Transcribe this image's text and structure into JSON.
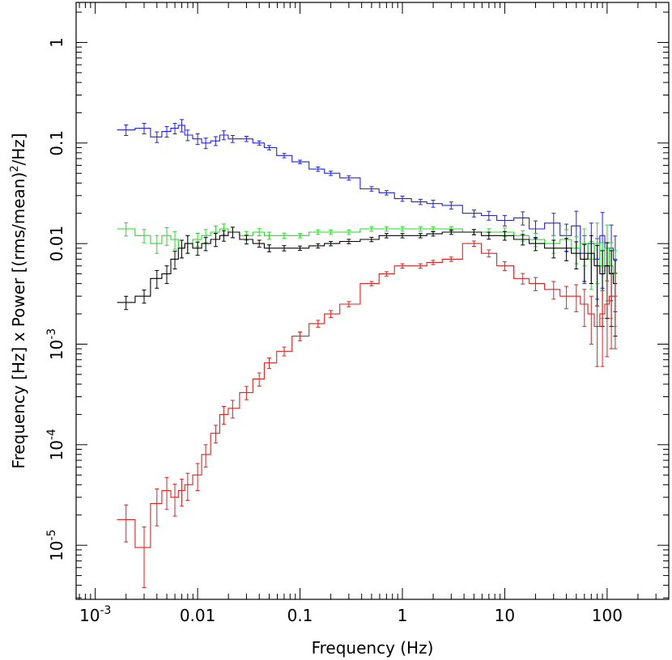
{
  "chart_data": {
    "type": "line",
    "style": "step with error bars",
    "xlabel": "Frequency (Hz)",
    "ylabel_parts": [
      "Frequency [Hz] x Power [(rms/mean)",
      "2",
      "/Hz]"
    ],
    "xscale": "log",
    "yscale": "log",
    "xlim": [
      0.00065,
      400
    ],
    "ylim": [
      2.9e-06,
      2.5
    ],
    "grid": false,
    "legend": "none",
    "x_ticks": [
      {
        "value": 0.001,
        "mant": "10",
        "exp": "-3"
      },
      {
        "value": 0.01,
        "mant": "0.01",
        "exp": ""
      },
      {
        "value": 0.1,
        "mant": "0.1",
        "exp": ""
      },
      {
        "value": 1,
        "mant": "1",
        "exp": ""
      },
      {
        "value": 10,
        "mant": "10",
        "exp": ""
      },
      {
        "value": 100,
        "mant": "100",
        "exp": ""
      }
    ],
    "y_ticks": [
      {
        "value": 1e-05,
        "mant": "10",
        "exp": "-5"
      },
      {
        "value": 0.0001,
        "mant": "10",
        "exp": "-4"
      },
      {
        "value": 0.001,
        "mant": "10",
        "exp": "-3"
      },
      {
        "value": 0.01,
        "mant": "0.01",
        "exp": ""
      },
      {
        "value": 0.1,
        "mant": "0.1",
        "exp": ""
      },
      {
        "value": 1,
        "mant": "1",
        "exp": ""
      }
    ],
    "series": [
      {
        "color": "#2222dd",
        "x": [
          0.002,
          0.003,
          0.004,
          0.005,
          0.006,
          0.007,
          0.008,
          0.01,
          0.012,
          0.015,
          0.018,
          0.022,
          0.03,
          0.04,
          0.05,
          0.07,
          0.1,
          0.15,
          0.2,
          0.3,
          0.5,
          0.7,
          1,
          1.5,
          2,
          3,
          5,
          7,
          10,
          15,
          20,
          30,
          40,
          50,
          60,
          70,
          80,
          90,
          100,
          110,
          120
        ],
        "y": [
          0.135,
          0.14,
          0.115,
          0.13,
          0.14,
          0.15,
          0.12,
          0.11,
          0.1,
          0.105,
          0.12,
          0.11,
          0.11,
          0.1,
          0.09,
          0.075,
          0.065,
          0.055,
          0.05,
          0.045,
          0.035,
          0.032,
          0.028,
          0.026,
          0.025,
          0.024,
          0.02,
          0.019,
          0.017,
          0.018,
          0.014,
          0.016,
          0.012,
          0.015,
          0.008,
          0.01,
          0.007,
          0.012,
          0.006,
          0.009,
          0.007
        ],
        "err": [
          0.12,
          0.12,
          0.12,
          0.12,
          0.12,
          0.14,
          0.12,
          0.12,
          0.12,
          0.1,
          0.1,
          0.08,
          0.06,
          0.05,
          0.05,
          0.05,
          0.04,
          0.05,
          0.05,
          0.05,
          0.05,
          0.05,
          0.06,
          0.06,
          0.08,
          0.08,
          0.08,
          0.1,
          0.12,
          0.15,
          0.2,
          0.25,
          0.3,
          0.4,
          0.5,
          0.6,
          0.6,
          0.7,
          0.7,
          0.7,
          0.7
        ]
      },
      {
        "color": "#22dd22",
        "x": [
          0.002,
          0.003,
          0.004,
          0.005,
          0.006,
          0.007,
          0.008,
          0.01,
          0.012,
          0.015,
          0.018,
          0.022,
          0.03,
          0.04,
          0.05,
          0.07,
          0.1,
          0.15,
          0.2,
          0.3,
          0.5,
          0.7,
          1,
          1.5,
          2,
          3,
          5,
          7,
          10,
          15,
          20,
          30,
          40,
          50,
          60,
          70,
          80,
          90,
          100,
          110,
          120
        ],
        "y": [
          0.014,
          0.012,
          0.01,
          0.012,
          0.011,
          0.009,
          0.01,
          0.011,
          0.012,
          0.013,
          0.014,
          0.013,
          0.012,
          0.013,
          0.012,
          0.012,
          0.012,
          0.013,
          0.013,
          0.013,
          0.014,
          0.014,
          0.014,
          0.014,
          0.014,
          0.014,
          0.013,
          0.013,
          0.013,
          0.012,
          0.011,
          0.01,
          0.011,
          0.009,
          0.01,
          0.007,
          0.01,
          0.006,
          0.009,
          0.006,
          0.005
        ],
        "err": [
          0.15,
          0.15,
          0.2,
          0.2,
          0.2,
          0.2,
          0.2,
          0.15,
          0.15,
          0.15,
          0.12,
          0.12,
          0.1,
          0.08,
          0.08,
          0.06,
          0.05,
          0.05,
          0.05,
          0.05,
          0.05,
          0.05,
          0.05,
          0.05,
          0.05,
          0.05,
          0.06,
          0.08,
          0.1,
          0.12,
          0.15,
          0.2,
          0.25,
          0.3,
          0.4,
          0.5,
          0.6,
          0.7,
          0.7,
          0.7,
          0.7
        ]
      },
      {
        "color": "#000000",
        "x": [
          0.002,
          0.003,
          0.004,
          0.005,
          0.006,
          0.007,
          0.008,
          0.01,
          0.012,
          0.015,
          0.018,
          0.022,
          0.03,
          0.04,
          0.05,
          0.07,
          0.1,
          0.15,
          0.2,
          0.3,
          0.5,
          0.7,
          1,
          1.5,
          2,
          3,
          5,
          7,
          10,
          15,
          20,
          30,
          40,
          50,
          60,
          70,
          80,
          90,
          100,
          110,
          120
        ],
        "y": [
          0.0026,
          0.003,
          0.0045,
          0.005,
          0.007,
          0.009,
          0.01,
          0.009,
          0.01,
          0.011,
          0.012,
          0.013,
          0.011,
          0.01,
          0.009,
          0.009,
          0.009,
          0.0095,
          0.01,
          0.0105,
          0.011,
          0.012,
          0.012,
          0.012,
          0.0125,
          0.013,
          0.013,
          0.012,
          0.012,
          0.011,
          0.01,
          0.009,
          0.009,
          0.008,
          0.007,
          0.008,
          0.006,
          0.005,
          0.006,
          0.005,
          0.004
        ],
        "err": [
          0.15,
          0.15,
          0.2,
          0.2,
          0.2,
          0.2,
          0.2,
          0.15,
          0.15,
          0.15,
          0.12,
          0.12,
          0.1,
          0.08,
          0.08,
          0.06,
          0.05,
          0.05,
          0.05,
          0.05,
          0.05,
          0.05,
          0.05,
          0.05,
          0.05,
          0.05,
          0.06,
          0.08,
          0.1,
          0.12,
          0.15,
          0.2,
          0.25,
          0.3,
          0.4,
          0.5,
          0.6,
          0.7,
          0.7,
          0.7,
          0.7
        ]
      },
      {
        "color": "#dd2222",
        "x": [
          0.002,
          0.003,
          0.004,
          0.005,
          0.006,
          0.007,
          0.008,
          0.01,
          0.012,
          0.015,
          0.018,
          0.022,
          0.03,
          0.04,
          0.05,
          0.07,
          0.1,
          0.15,
          0.2,
          0.3,
          0.5,
          0.7,
          1,
          1.5,
          2,
          3,
          5,
          7,
          10,
          15,
          20,
          30,
          40,
          50,
          60,
          70,
          80,
          90,
          100,
          110,
          120
        ],
        "y": [
          1.8e-05,
          9.5e-06,
          2.6e-05,
          3.5e-05,
          3e-05,
          3.5e-05,
          4e-05,
          5e-05,
          8e-05,
          0.00013,
          0.0002,
          0.00023,
          0.00033,
          0.00045,
          0.00065,
          0.00085,
          0.0012,
          0.0016,
          0.002,
          0.0025,
          0.004,
          0.005,
          0.006,
          0.006,
          0.0065,
          0.007,
          0.01,
          0.008,
          0.006,
          0.0045,
          0.004,
          0.0035,
          0.003,
          0.003,
          0.0025,
          0.002,
          0.0015,
          0.002,
          0.0025,
          0.003,
          0.003
        ],
        "err": [
          0.4,
          0.6,
          0.4,
          0.35,
          0.35,
          0.3,
          0.3,
          0.3,
          0.25,
          0.2,
          0.2,
          0.2,
          0.15,
          0.15,
          0.12,
          0.1,
          0.1,
          0.08,
          0.08,
          0.06,
          0.05,
          0.05,
          0.05,
          0.05,
          0.05,
          0.05,
          0.06,
          0.08,
          0.1,
          0.12,
          0.15,
          0.2,
          0.25,
          0.3,
          0.4,
          0.5,
          0.6,
          0.7,
          0.7,
          0.7,
          0.7
        ]
      }
    ]
  }
}
